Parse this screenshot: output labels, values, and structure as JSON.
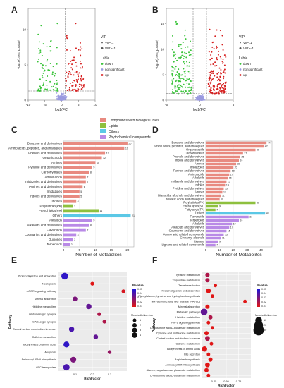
{
  "figure": {
    "panel_letters": [
      "A",
      "B",
      "C",
      "D",
      "E",
      "F"
    ],
    "colors": {
      "down": "#3cc43c",
      "nonsig": "#9a9ae0",
      "up": "#d62020",
      "bio": "#e88a80",
      "lipids": "#8ec03e",
      "others": "#5bc8e6",
      "phys": "#b98ae6",
      "pval_high": "#1616e0",
      "pval_low": "#e01616"
    }
  },
  "chart_data": [
    {
      "panel": "A",
      "type": "scatter",
      "xlabel": "log2(FC)",
      "ylabel": "-log10(t.test_p.value)",
      "xlim": [
        -10,
        10
      ],
      "ylim": [
        0,
        13
      ],
      "xticks": [
        -10,
        -5,
        0,
        5,
        10
      ],
      "yticks": [
        0,
        5,
        10
      ],
      "vlines": [
        -1,
        1
      ],
      "hline": 1.3,
      "legend": {
        "vip_title": "VIP",
        "vip_items": [
          "VIP<1",
          "VIP>=1"
        ],
        "label_title": "Lable",
        "label_items": [
          "down",
          "nonsignificant",
          "up"
        ]
      },
      "counts": {
        "down": 80,
        "up": 95,
        "nonsig": 140
      }
    },
    {
      "panel": "B",
      "type": "scatter",
      "xlabel": "log2(FC)",
      "ylabel": "-log10(t.test_p.value)",
      "xlim": [
        -5,
        5
      ],
      "ylim": [
        0,
        18
      ],
      "xticks": [
        -5,
        0,
        5
      ],
      "yticks": [
        0,
        5,
        10,
        15
      ],
      "vlines": [
        -1,
        1
      ],
      "hline": 1.3,
      "legend": {
        "vip_title": "VIP",
        "vip_items": [
          "VIP<1",
          "VIP>=1"
        ],
        "label_title": "Lable",
        "label_items": [
          "down",
          "nonsignificant",
          "up"
        ]
      },
      "counts": {
        "down": 150,
        "up": 160,
        "nonsig": 150
      }
    },
    {
      "panel": "C",
      "type": "bar",
      "orientation": "horizontal",
      "xlabel": "Number of Metabolites",
      "xlim": [
        0,
        22
      ],
      "xticks": [
        0,
        5,
        10,
        15,
        20
      ],
      "legend_items": [
        "Compounds with biological roles",
        "Lipids",
        "Others",
        "Phytochemical compounds"
      ],
      "categories": [
        "Benzene and derivatives",
        "Amino acids, peptides, and analogues",
        "Phenols and derivatives",
        "Organic acids",
        "Amines",
        "Pyridine and derivatives",
        "Carbohydrates",
        "Amino acids",
        "Imidazoles and derivatives",
        "Purines and derivatives",
        "Imidazoles",
        "Indoles and derivatives",
        "Indoles",
        "Polyketides[PK]",
        "Prenol lipids[PR]",
        "Others",
        "Alkaloids",
        "Alkaloids and derivatives",
        "Flavonoids",
        "Coumarins and derivatives",
        "Quinones",
        "Terpenoids"
      ],
      "values": [
        20,
        19,
        13,
        12,
        10,
        9,
        8,
        7,
        7,
        6,
        5,
        5,
        4,
        3,
        11,
        21,
        9,
        8,
        7,
        4,
        3,
        2
      ],
      "groups": [
        "bio",
        "bio",
        "bio",
        "bio",
        "bio",
        "bio",
        "bio",
        "bio",
        "bio",
        "bio",
        "bio",
        "bio",
        "bio",
        "lipids",
        "lipids",
        "others",
        "phys",
        "phys",
        "phys",
        "phys",
        "phys",
        "phys"
      ]
    },
    {
      "panel": "D",
      "type": "bar",
      "orientation": "horizontal",
      "xlabel": "Number of Metabolites",
      "xlim": [
        0,
        48
      ],
      "xticks": [
        0,
        10,
        20,
        30,
        40
      ],
      "categories": [
        "Benzene and derivatives",
        "Amino acids, peptides, and analogues",
        "Organic acids",
        "Carbohydrates",
        "Phenols and derivatives",
        "Indole and derivatives",
        "Amines",
        "Imidazoles",
        "Purines and derivatives",
        "Amino acids",
        "Alkaloids",
        "Imidazole and derivatives",
        "Indoles",
        "Pyridine and derivatives",
        "Amines",
        "Bile acids, alcohols and derivatives",
        "Nucleic acids and analogues",
        "Polyketides[PK]",
        "Sterol lipids[ST]",
        "Fatty acyls[FA]",
        "Others",
        "Flavonoids",
        "Terpenoids",
        "Alkaloids",
        "Alkaloids and derivatives",
        "Coumarins and derivatives",
        "Amino acid related compounds",
        "Cinnamyl alcohols",
        "Lignans",
        "Lignans and related compounds"
      ],
      "values": [
        44,
        42,
        36,
        27,
        25,
        24,
        22,
        20,
        18,
        17,
        16,
        15,
        14,
        13,
        12,
        11,
        10,
        36,
        9,
        7,
        43,
        31,
        24,
        19,
        17,
        15,
        13,
        11,
        9,
        7
      ],
      "groups": [
        "bio",
        "bio",
        "bio",
        "bio",
        "bio",
        "bio",
        "bio",
        "bio",
        "bio",
        "bio",
        "bio",
        "bio",
        "bio",
        "bio",
        "bio",
        "bio",
        "bio",
        "lipids",
        "lipids",
        "lipids",
        "others",
        "phys",
        "phys",
        "phys",
        "phys",
        "phys",
        "phys",
        "phys",
        "phys",
        "phys"
      ]
    },
    {
      "panel": "E",
      "type": "scatter",
      "xlabel": "RichFactor",
      "ylabel": "Pathway",
      "xlim": [
        0,
        0.4
      ],
      "xticks": [
        "0.1",
        "0.2",
        "0.3"
      ],
      "categories": [
        "Protein digestion and absorption",
        "Necroptosis",
        "mTOR signaling pathway",
        "Mineral absorption",
        "Histidine metabolism",
        "Glutamatergic synapse",
        "GABAergic synapse",
        "Central carbon metabolism in cancer",
        "Caffeine metabolism",
        "Biosynthesis of amino acids",
        "Apoptosis",
        "Aminoacyl-tRNA biosynthesis",
        "ABC transporters"
      ],
      "x": [
        0.04,
        0.2,
        0.38,
        0.1,
        0.18,
        0.24,
        0.27,
        0.08,
        0.22,
        0.05,
        0.3,
        0.09,
        0.05
      ],
      "size": [
        6,
        1,
        1,
        2,
        3,
        1,
        1,
        3,
        2,
        4,
        1,
        4,
        5
      ],
      "pvalue": [
        0.045,
        0.01,
        0.012,
        0.03,
        0.035,
        0.02,
        0.02,
        0.04,
        0.035,
        0.045,
        0.025,
        0.03,
        0.04
      ],
      "legend": {
        "pvalue_title": "P value",
        "pvalue_ticks": [
          "0.05",
          "0.04",
          "0.03",
          "0.02",
          "0.01"
        ],
        "size_title": "MetaboliteNumber",
        "size_ticks": [
          "1",
          "2",
          "3",
          "4"
        ]
      }
    },
    {
      "panel": "F",
      "type": "scatter",
      "xlabel": "RichFactor",
      "ylabel": "Pathway",
      "xlim": [
        0,
        1
      ],
      "xticks": [
        "0.25",
        "0.50",
        "0.75"
      ],
      "categories": [
        "Tyrosine metabolism",
        "Tryptophan metabolism",
        "Taste transduction",
        "Protein digestion and absorption",
        "Phenylalanine, tyrosine and tryptophan biosynthesis",
        "Non-alcoholic fatty liver disease (NAFLD)",
        "Mineral absorption",
        "Metabolic pathways",
        "Histidine metabolism",
        "HIF-1 signaling pathway",
        "D-Glutamine and D-glutamate metabolism",
        "Cysteine and methionine metabolism",
        "Central carbon metabolism in cancer",
        "Caffeine metabolism",
        "Biosynthesis of amino acids",
        "Bile secretion",
        "Arginine biosynthesis",
        "Aminoacyl-tRNA biosynthesis",
        "Alanine, aspartate and glutamate metabolism",
        "D-Glutamine and D-glutamate metabolism"
      ],
      "x": [
        0.12,
        0.12,
        0.28,
        0.14,
        0.22,
        0.88,
        0.12,
        0.05,
        0.18,
        0.14,
        0.22,
        0.1,
        0.12,
        0.2,
        0.06,
        0.14,
        0.18,
        0.12,
        0.1,
        0.14
      ],
      "size": [
        2,
        2,
        1,
        3,
        1,
        1,
        2,
        8,
        2,
        1,
        1,
        2,
        3,
        1,
        4,
        1,
        2,
        3,
        2,
        1
      ],
      "pvalue": [
        0.02,
        0.02,
        0.01,
        0.01,
        0.01,
        0.01,
        0.01,
        0.035,
        0.02,
        0.01,
        0.01,
        0.01,
        0.02,
        0.01,
        0.01,
        0.01,
        0.01,
        0.01,
        0.01,
        0.01
      ],
      "legend": {
        "pvalue_title": "P value",
        "pvalue_ticks": [
          "0.05",
          "0.04",
          "0.03",
          "0.02",
          "0.01"
        ],
        "size_title": "MetaboliteNumber",
        "size_ticks": [
          "10",
          "20",
          "30"
        ]
      }
    }
  ]
}
